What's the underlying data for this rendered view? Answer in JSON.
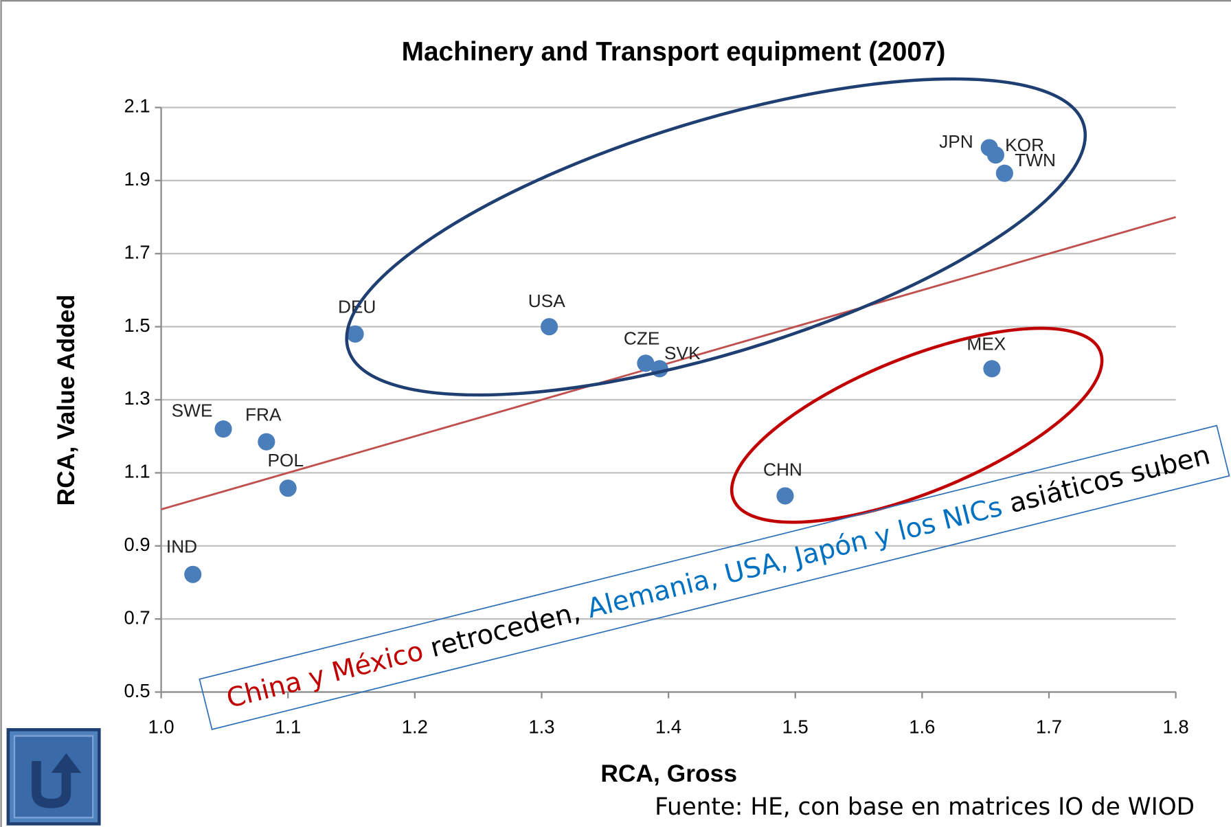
{
  "chart_data": {
    "type": "scatter",
    "title": "Machinery and Transport equipment (2007)",
    "xlabel": "RCA, Gross",
    "ylabel": "RCA, Value Added",
    "labels": [
      "DEU",
      "USA",
      "CZE",
      "SVK",
      "JPN",
      "KOR",
      "TWN",
      "MEX",
      "CHN",
      "SWE",
      "FRA",
      "POL",
      "IND"
    ],
    "x": [
      1.153,
      1.306,
      1.382,
      1.393,
      1.653,
      1.658,
      1.665,
      1.655,
      1.492,
      1.049,
      1.083,
      1.1,
      1.025
    ],
    "values": [
      1.48,
      1.5,
      1.4,
      1.385,
      1.99,
      1.97,
      1.92,
      1.385,
      1.037,
      1.22,
      1.185,
      1.058,
      0.822
    ],
    "color": "#4a7ebb",
    "trendline": {
      "x": [
        1.0,
        1.8
      ],
      "values": [
        1.0,
        1.8
      ],
      "color": "#c0504d"
    },
    "xlim": [
      1.0,
      1.8
    ],
    "xticks": [
      {
        "value": 1,
        "label": "1.0"
      },
      1.1,
      1.2,
      1.3,
      1.4,
      1.5,
      1.6,
      1.7,
      1.8
    ],
    "ylim": [
      0.5,
      2.1
    ],
    "yticks": [
      0.5,
      0.7,
      0.9,
      1.1,
      1.3,
      1.5,
      1.7,
      1.9,
      2.1
    ],
    "grid": true,
    "annotation": [
      {
        "text": "China y México",
        "color": "#c00000"
      },
      {
        "text": " retroceden, ",
        "color": "#000000"
      },
      {
        "text": "Alemania, USA, Japón y los NICs",
        "color": "#0070c0"
      },
      {
        "text": " asiáticos suben",
        "color": "#000000"
      }
    ],
    "source": "Fuente: HE, con base en matrices IO de WIOD"
  }
}
